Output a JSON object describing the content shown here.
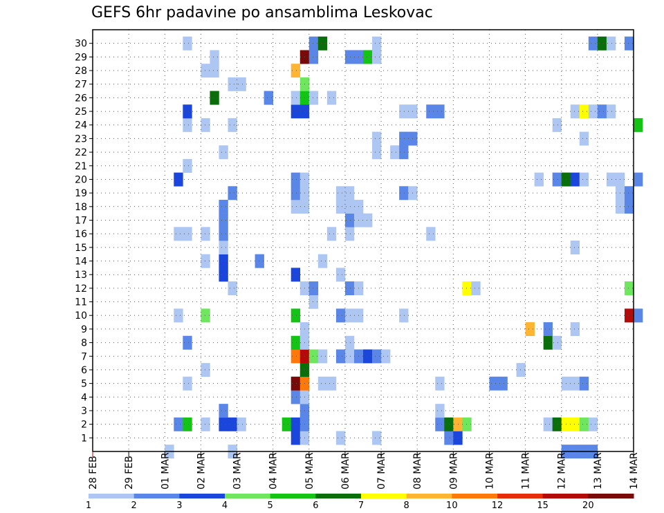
{
  "chart_data": {
    "type": "heatmap",
    "title": "GEFS 6hr padavine po ansamblima Leskovac",
    "x_tick_labels": [
      "28 FEB",
      "29 FEB",
      "01 MAR",
      "02 MAR",
      "03 MAR",
      "04 MAR",
      "05 MAR",
      "06 MAR",
      "07 MAR",
      "08 MAR",
      "09 MAR",
      "10 MAR",
      "11 MAR",
      "12 MAR",
      "13 MAR",
      "14 MAR"
    ],
    "x_range": [
      "28 FEB",
      "14 MAR"
    ],
    "x_step_hours": 6,
    "y_tick_labels": [
      "1",
      "2",
      "3",
      "4",
      "5",
      "6",
      "7",
      "8",
      "9",
      "10",
      "11",
      "12",
      "13",
      "14",
      "15",
      "16",
      "17",
      "18",
      "19",
      "20",
      "21",
      "22",
      "23",
      "24",
      "25",
      "26",
      "27",
      "28",
      "29",
      "30"
    ],
    "y_range": [
      1,
      30
    ],
    "grid": "dotted",
    "legend_position": "bottom",
    "colorbar": {
      "labels": [
        "1",
        "2",
        "3",
        "4",
        "5",
        "6",
        "7",
        "8",
        "10",
        "12",
        "15",
        "20"
      ],
      "colors": [
        "#aec6f2",
        "#5a86e8",
        "#1a46dc",
        "#6ee65e",
        "#14c414",
        "#0a6e0a",
        "#ffff00",
        "#ffb432",
        "#ff780a",
        "#e62d0a",
        "#b40a0a",
        "#780a0a"
      ]
    },
    "cells": [
      {
        "time": "01 MAR 00Z",
        "member": 0,
        "v": 1
      },
      {
        "time": "02 MAR 18Z",
        "member": 0,
        "v": 1
      },
      {
        "time": "12 MAR 00Z",
        "member": 0,
        "v": 2
      },
      {
        "time": "12 MAR 06Z",
        "member": 0,
        "v": 2
      },
      {
        "time": "12 MAR 12Z",
        "member": 0,
        "v": 2
      },
      {
        "time": "12 MAR 18Z",
        "member": 0,
        "v": 2
      },
      {
        "time": "04 MAR 12Z",
        "member": 1,
        "v": 3
      },
      {
        "time": "04 MAR 18Z",
        "member": 1,
        "v": 1
      },
      {
        "time": "05 MAR 18Z",
        "member": 1,
        "v": 1
      },
      {
        "time": "06 MAR 18Z",
        "member": 1,
        "v": 1
      },
      {
        "time": "08 MAR 18Z",
        "member": 1,
        "v": 2
      },
      {
        "time": "09 MAR 00Z",
        "member": 1,
        "v": 3
      },
      {
        "time": "01 MAR 06Z",
        "member": 2,
        "v": 2
      },
      {
        "time": "01 MAR 12Z",
        "member": 2,
        "v": 5
      },
      {
        "time": "02 MAR 00Z",
        "member": 2,
        "v": 1
      },
      {
        "time": "02 MAR 12Z",
        "member": 2,
        "v": 3
      },
      {
        "time": "02 MAR 18Z",
        "member": 2,
        "v": 3
      },
      {
        "time": "03 MAR 00Z",
        "member": 2,
        "v": 1
      },
      {
        "time": "04 MAR 06Z",
        "member": 2,
        "v": 5
      },
      {
        "time": "04 MAR 12Z",
        "member": 2,
        "v": 3
      },
      {
        "time": "04 MAR 18Z",
        "member": 2,
        "v": 2
      },
      {
        "time": "08 MAR 12Z",
        "member": 2,
        "v": 2
      },
      {
        "time": "08 MAR 18Z",
        "member": 2,
        "v": 6
      },
      {
        "time": "09 MAR 00Z",
        "member": 2,
        "v": 9
      },
      {
        "time": "09 MAR 06Z",
        "member": 2,
        "v": 4
      },
      {
        "time": "11 MAR 12Z",
        "member": 2,
        "v": 1
      },
      {
        "time": "11 MAR 18Z",
        "member": 2,
        "v": 6
      },
      {
        "time": "12 MAR 00Z",
        "member": 2,
        "v": 7
      },
      {
        "time": "12 MAR 06Z",
        "member": 2,
        "v": 7
      },
      {
        "time": "12 MAR 12Z",
        "member": 2,
        "v": 4
      },
      {
        "time": "12 MAR 18Z",
        "member": 2,
        "v": 1
      },
      {
        "time": "02 MAR 12Z",
        "member": 3,
        "v": 2
      },
      {
        "time": "04 MAR 18Z",
        "member": 3,
        "v": 2
      },
      {
        "time": "08 MAR 12Z",
        "member": 3,
        "v": 1
      },
      {
        "time": "04 MAR 12Z",
        "member": 4,
        "v": 2
      },
      {
        "time": "04 MAR 18Z",
        "member": 4,
        "v": 1
      },
      {
        "time": "01 MAR 12Z",
        "member": 5,
        "v": 1
      },
      {
        "time": "04 MAR 12Z",
        "member": 5,
        "v": 20
      },
      {
        "time": "04 MAR 18Z",
        "member": 5,
        "v": 10
      },
      {
        "time": "05 MAR 06Z",
        "member": 5,
        "v": 1
      },
      {
        "time": "05 MAR 12Z",
        "member": 5,
        "v": 1
      },
      {
        "time": "08 MAR 12Z",
        "member": 5,
        "v": 1
      },
      {
        "time": "10 MAR 00Z",
        "member": 5,
        "v": 2
      },
      {
        "time": "10 MAR 06Z",
        "member": 5,
        "v": 2
      },
      {
        "time": "12 MAR 00Z",
        "member": 5,
        "v": 1
      },
      {
        "time": "12 MAR 06Z",
        "member": 5,
        "v": 1
      },
      {
        "time": "12 MAR 12Z",
        "member": 5,
        "v": 2
      },
      {
        "time": "02 MAR 00Z",
        "member": 6,
        "v": 1
      },
      {
        "time": "04 MAR 18Z",
        "member": 6,
        "v": 6
      },
      {
        "time": "10 MAR 18Z",
        "member": 6,
        "v": 1
      },
      {
        "time": "04 MAR 12Z",
        "member": 7,
        "v": 10
      },
      {
        "time": "04 MAR 18Z",
        "member": 7,
        "v": 15
      },
      {
        "time": "05 MAR 00Z",
        "member": 7,
        "v": 4
      },
      {
        "time": "05 MAR 06Z",
        "member": 7,
        "v": 1
      },
      {
        "time": "05 MAR 18Z",
        "member": 7,
        "v": 2
      },
      {
        "time": "06 MAR 00Z",
        "member": 7,
        "v": 1
      },
      {
        "time": "06 MAR 06Z",
        "member": 7,
        "v": 2
      },
      {
        "time": "06 MAR 12Z",
        "member": 7,
        "v": 3
      },
      {
        "time": "06 MAR 18Z",
        "member": 7,
        "v": 2
      },
      {
        "time": "07 MAR 00Z",
        "member": 7,
        "v": 1
      },
      {
        "time": "01 MAR 12Z",
        "member": 8,
        "v": 2
      },
      {
        "time": "04 MAR 12Z",
        "member": 8,
        "v": 5
      },
      {
        "time": "04 MAR 18Z",
        "member": 8,
        "v": 1
      },
      {
        "time": "06 MAR 00Z",
        "member": 8,
        "v": 1
      },
      {
        "time": "11 MAR 12Z",
        "member": 8,
        "v": 6
      },
      {
        "time": "11 MAR 18Z",
        "member": 8,
        "v": 1
      },
      {
        "time": "04 MAR 18Z",
        "member": 9,
        "v": 1
      },
      {
        "time": "11 MAR 00Z",
        "member": 9,
        "v": 8
      },
      {
        "time": "11 MAR 12Z",
        "member": 9,
        "v": 2
      },
      {
        "time": "12 MAR 06Z",
        "member": 9,
        "v": 1
      },
      {
        "time": "01 MAR 06Z",
        "member": 10,
        "v": 1
      },
      {
        "time": "02 MAR 00Z",
        "member": 10,
        "v": 4
      },
      {
        "time": "04 MAR 12Z",
        "member": 10,
        "v": 5
      },
      {
        "time": "05 MAR 18Z",
        "member": 10,
        "v": 2
      },
      {
        "time": "06 MAR 00Z",
        "member": 10,
        "v": 1
      },
      {
        "time": "06 MAR 06Z",
        "member": 10,
        "v": 1
      },
      {
        "time": "07 MAR 12Z",
        "member": 10,
        "v": 1
      },
      {
        "time": "13 MAR 18Z",
        "member": 10,
        "v": 15
      },
      {
        "time": "14 MAR 00Z",
        "member": 10,
        "v": 2
      },
      {
        "time": "05 MAR 00Z",
        "member": 11,
        "v": 1
      },
      {
        "time": "02 MAR 18Z",
        "member": 12,
        "v": 1
      },
      {
        "time": "04 MAR 18Z",
        "member": 12,
        "v": 1
      },
      {
        "time": "05 MAR 00Z",
        "member": 12,
        "v": 2
      },
      {
        "time": "06 MAR 00Z",
        "member": 12,
        "v": 2
      },
      {
        "time": "06 MAR 06Z",
        "member": 12,
        "v": 1
      },
      {
        "time": "09 MAR 06Z",
        "member": 12,
        "v": 7
      },
      {
        "time": "09 MAR 12Z",
        "member": 12,
        "v": 1
      },
      {
        "time": "13 MAR 18Z",
        "member": 12,
        "v": 4
      },
      {
        "time": "02 MAR 12Z",
        "member": 13,
        "v": 3
      },
      {
        "time": "04 MAR 12Z",
        "member": 13,
        "v": 3
      },
      {
        "time": "05 MAR 18Z",
        "member": 13,
        "v": 1
      },
      {
        "time": "02 MAR 00Z",
        "member": 14,
        "v": 1
      },
      {
        "time": "02 MAR 12Z",
        "member": 14,
        "v": 3
      },
      {
        "time": "03 MAR 12Z",
        "member": 14,
        "v": 2
      },
      {
        "time": "05 MAR 06Z",
        "member": 14,
        "v": 1
      },
      {
        "time": "02 MAR 12Z",
        "member": 15,
        "v": 1
      },
      {
        "time": "12 MAR 06Z",
        "member": 15,
        "v": 1
      },
      {
        "time": "01 MAR 06Z",
        "member": 16,
        "v": 1
      },
      {
        "time": "01 MAR 12Z",
        "member": 16,
        "v": 1
      },
      {
        "time": "02 MAR 00Z",
        "member": 16,
        "v": 1
      },
      {
        "time": "02 MAR 12Z",
        "member": 16,
        "v": 2
      },
      {
        "time": "05 MAR 12Z",
        "member": 16,
        "v": 1
      },
      {
        "time": "06 MAR 00Z",
        "member": 16,
        "v": 1
      },
      {
        "time": "08 MAR 06Z",
        "member": 16,
        "v": 1
      },
      {
        "time": "02 MAR 12Z",
        "member": 17,
        "v": 2
      },
      {
        "time": "06 MAR 00Z",
        "member": 17,
        "v": 2
      },
      {
        "time": "06 MAR 06Z",
        "member": 17,
        "v": 1
      },
      {
        "time": "06 MAR 12Z",
        "member": 17,
        "v": 1
      },
      {
        "time": "02 MAR 12Z",
        "member": 18,
        "v": 2
      },
      {
        "time": "04 MAR 12Z",
        "member": 18,
        "v": 1
      },
      {
        "time": "04 MAR 18Z",
        "member": 18,
        "v": 1
      },
      {
        "time": "05 MAR 18Z",
        "member": 18,
        "v": 1
      },
      {
        "time": "06 MAR 00Z",
        "member": 18,
        "v": 1
      },
      {
        "time": "06 MAR 06Z",
        "member": 18,
        "v": 1
      },
      {
        "time": "13 MAR 12Z",
        "member": 18,
        "v": 1
      },
      {
        "time": "13 MAR 18Z",
        "member": 18,
        "v": 2
      },
      {
        "time": "02 MAR 18Z",
        "member": 19,
        "v": 2
      },
      {
        "time": "04 MAR 12Z",
        "member": 19,
        "v": 2
      },
      {
        "time": "04 MAR 18Z",
        "member": 19,
        "v": 1
      },
      {
        "time": "05 MAR 18Z",
        "member": 19,
        "v": 1
      },
      {
        "time": "06 MAR 00Z",
        "member": 19,
        "v": 1
      },
      {
        "time": "07 MAR 12Z",
        "member": 19,
        "v": 2
      },
      {
        "time": "07 MAR 18Z",
        "member": 19,
        "v": 1
      },
      {
        "time": "13 MAR 12Z",
        "member": 19,
        "v": 1
      },
      {
        "time": "13 MAR 18Z",
        "member": 19,
        "v": 2
      },
      {
        "time": "01 MAR 06Z",
        "member": 20,
        "v": 3
      },
      {
        "time": "04 MAR 12Z",
        "member": 20,
        "v": 2
      },
      {
        "time": "04 MAR 18Z",
        "member": 20,
        "v": 1
      },
      {
        "time": "11 MAR 06Z",
        "member": 20,
        "v": 1
      },
      {
        "time": "11 MAR 18Z",
        "member": 20,
        "v": 2
      },
      {
        "time": "12 MAR 00Z",
        "member": 20,
        "v": 6
      },
      {
        "time": "12 MAR 06Z",
        "member": 20,
        "v": 3
      },
      {
        "time": "12 MAR 12Z",
        "member": 20,
        "v": 1
      },
      {
        "time": "13 MAR 06Z",
        "member": 20,
        "v": 1
      },
      {
        "time": "13 MAR 12Z",
        "member": 20,
        "v": 1
      },
      {
        "time": "14 MAR 00Z",
        "member": 20,
        "v": 2
      },
      {
        "time": "01 MAR 12Z",
        "member": 21,
        "v": 1
      },
      {
        "time": "02 MAR 12Z",
        "member": 22,
        "v": 1
      },
      {
        "time": "06 MAR 18Z",
        "member": 22,
        "v": 1
      },
      {
        "time": "07 MAR 06Z",
        "member": 22,
        "v": 1
      },
      {
        "time": "07 MAR 12Z",
        "member": 22,
        "v": 2
      },
      {
        "time": "06 MAR 18Z",
        "member": 23,
        "v": 1
      },
      {
        "time": "07 MAR 12Z",
        "member": 23,
        "v": 2
      },
      {
        "time": "07 MAR 18Z",
        "member": 23,
        "v": 2
      },
      {
        "time": "12 MAR 12Z",
        "member": 23,
        "v": 1
      },
      {
        "time": "01 MAR 12Z",
        "member": 24,
        "v": 1
      },
      {
        "time": "02 MAR 00Z",
        "member": 24,
        "v": 1
      },
      {
        "time": "02 MAR 18Z",
        "member": 24,
        "v": 1
      },
      {
        "time": "11 MAR 18Z",
        "member": 24,
        "v": 1
      },
      {
        "time": "14 MAR 00Z",
        "member": 24,
        "v": 5
      },
      {
        "time": "01 MAR 12Z",
        "member": 25,
        "v": 3
      },
      {
        "time": "04 MAR 12Z",
        "member": 25,
        "v": 3
      },
      {
        "time": "04 MAR 18Z",
        "member": 25,
        "v": 3
      },
      {
        "time": "07 MAR 12Z",
        "member": 25,
        "v": 1
      },
      {
        "time": "07 MAR 18Z",
        "member": 25,
        "v": 1
      },
      {
        "time": "08 MAR 06Z",
        "member": 25,
        "v": 2
      },
      {
        "time": "08 MAR 12Z",
        "member": 25,
        "v": 2
      },
      {
        "time": "12 MAR 06Z",
        "member": 25,
        "v": 1
      },
      {
        "time": "12 MAR 12Z",
        "member": 25,
        "v": 7
      },
      {
        "time": "12 MAR 18Z",
        "member": 25,
        "v": 1
      },
      {
        "time": "13 MAR 00Z",
        "member": 25,
        "v": 2
      },
      {
        "time": "13 MAR 06Z",
        "member": 25,
        "v": 1
      },
      {
        "time": "02 MAR 06Z",
        "member": 26,
        "v": 6
      },
      {
        "time": "03 MAR 18Z",
        "member": 26,
        "v": 2
      },
      {
        "time": "04 MAR 12Z",
        "member": 26,
        "v": 1
      },
      {
        "time": "04 MAR 18Z",
        "member": 26,
        "v": 5
      },
      {
        "time": "05 MAR 00Z",
        "member": 26,
        "v": 1
      },
      {
        "time": "05 MAR 12Z",
        "member": 26,
        "v": 1
      },
      {
        "time": "02 MAR 18Z",
        "member": 27,
        "v": 1
      },
      {
        "time": "03 MAR 00Z",
        "member": 27,
        "v": 1
      },
      {
        "time": "04 MAR 18Z",
        "member": 27,
        "v": 4
      },
      {
        "time": "02 MAR 00Z",
        "member": 28,
        "v": 1
      },
      {
        "time": "02 MAR 06Z",
        "member": 28,
        "v": 1
      },
      {
        "time": "04 MAR 12Z",
        "member": 28,
        "v": 8
      },
      {
        "time": "02 MAR 06Z",
        "member": 29,
        "v": 1
      },
      {
        "time": "04 MAR 18Z",
        "member": 29,
        "v": 20
      },
      {
        "time": "05 MAR 00Z",
        "member": 29,
        "v": 2
      },
      {
        "time": "06 MAR 00Z",
        "member": 29,
        "v": 2
      },
      {
        "time": "06 MAR 06Z",
        "member": 29,
        "v": 2
      },
      {
        "time": "06 MAR 12Z",
        "member": 29,
        "v": 5
      },
      {
        "time": "06 MAR 18Z",
        "member": 29,
        "v": 1
      },
      {
        "time": "01 MAR 12Z",
        "member": 30,
        "v": 1
      },
      {
        "time": "05 MAR 00Z",
        "member": 30,
        "v": 2
      },
      {
        "time": "05 MAR 06Z",
        "member": 30,
        "v": 6
      },
      {
        "time": "06 MAR 18Z",
        "member": 30,
        "v": 1
      },
      {
        "time": "12 MAR 18Z",
        "member": 30,
        "v": 2
      },
      {
        "time": "13 MAR 00Z",
        "member": 30,
        "v": 6
      },
      {
        "time": "13 MAR 06Z",
        "member": 30,
        "v": 1
      },
      {
        "time": "13 MAR 18Z",
        "member": 30,
        "v": 2
      }
    ]
  }
}
